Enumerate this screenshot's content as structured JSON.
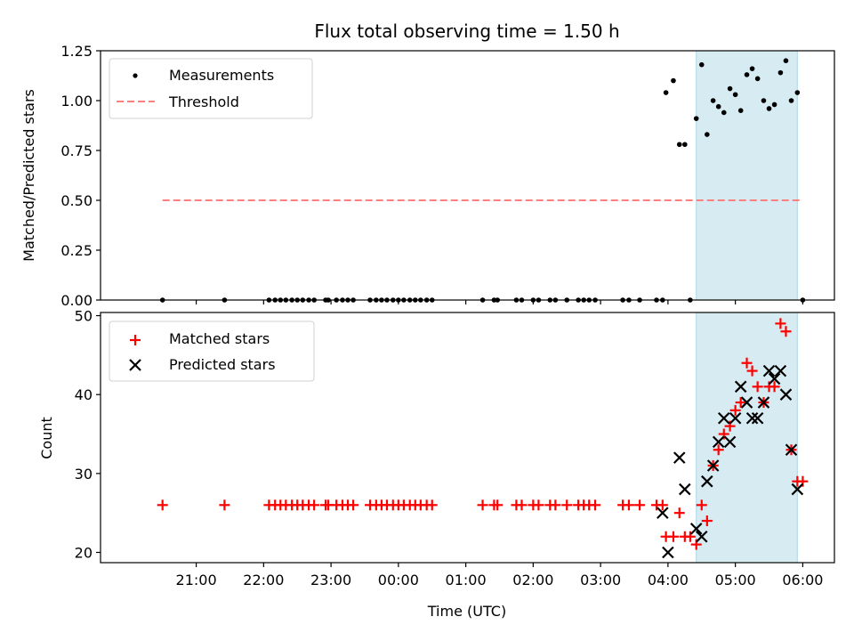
{
  "chart_data": [
    {
      "type": "scatter",
      "id": "ratio",
      "title": "Flux total observing time = 1.50 h",
      "xlabel": "",
      "ylabel": "Matched/Predicted stars",
      "ylim": [
        0.0,
        1.25
      ],
      "xlim_hours": [
        19.58,
        30.47
      ],
      "yticks": [
        0.0,
        0.25,
        0.5,
        0.75,
        1.0,
        1.25
      ],
      "ytick_labels": [
        "0.00",
        "0.25",
        "0.50",
        "0.75",
        "1.00",
        "1.25"
      ],
      "legend": {
        "placement": "top-left",
        "entries": [
          "Measurements",
          "Threshold"
        ]
      },
      "highlight_span_hours": [
        28.42,
        29.92
      ],
      "highlight_color": "#add8e6",
      "threshold": {
        "name": "Threshold",
        "value": 0.5,
        "x_range_hours": [
          20.5,
          30.0
        ],
        "color": "#ff7f7f",
        "style": "dashed"
      },
      "series": [
        {
          "name": "Measurements",
          "marker": "dot",
          "color": "#000000",
          "x": [
            20.5,
            21.42,
            22.08,
            22.17,
            22.25,
            22.33,
            22.42,
            22.5,
            22.58,
            22.67,
            22.75,
            22.92,
            22.96,
            23.08,
            23.17,
            23.25,
            23.33,
            23.58,
            23.67,
            23.75,
            23.83,
            23.92,
            24.0,
            24.08,
            24.17,
            24.25,
            24.33,
            24.42,
            24.5,
            25.25,
            25.42,
            25.47,
            25.75,
            25.83,
            26.0,
            26.08,
            26.25,
            26.33,
            26.5,
            26.67,
            26.75,
            26.83,
            26.92,
            27.33,
            27.42,
            27.58,
            27.83,
            27.92,
            27.97,
            28.08,
            28.17,
            28.25,
            28.33,
            28.42,
            28.5,
            28.58,
            28.67,
            28.75,
            28.83,
            28.92,
            29.0,
            29.08,
            29.17,
            29.25,
            29.33,
            29.42,
            29.5,
            29.58,
            29.67,
            29.75,
            29.83,
            29.92,
            30.0
          ],
          "y": [
            0,
            0,
            0,
            0,
            0,
            0,
            0,
            0,
            0,
            0,
            0,
            0,
            0,
            0,
            0,
            0,
            0,
            0,
            0,
            0,
            0,
            0,
            0,
            0,
            0,
            0,
            0,
            0,
            0,
            0,
            0,
            0,
            0,
            0,
            0,
            0,
            0,
            0,
            0,
            0,
            0,
            0,
            0,
            0,
            0,
            0,
            0,
            0,
            1.04,
            1.1,
            0.78,
            0.78,
            0,
            0.91,
            1.18,
            0.83,
            1.0,
            0.97,
            0.94,
            1.06,
            1.03,
            0.95,
            1.13,
            1.16,
            1.11,
            1.0,
            0.96,
            0.98,
            1.14,
            1.2,
            1.0,
            1.04,
            0
          ]
        }
      ]
    },
    {
      "type": "scatter",
      "id": "counts",
      "title": "",
      "xlabel": "Time (UTC)",
      "ylabel": "Count",
      "ylim": [
        18.7,
        50.4
      ],
      "xlim_hours": [
        19.58,
        30.47
      ],
      "yticks": [
        20,
        30,
        40,
        50
      ],
      "ytick_labels": [
        "20",
        "30",
        "40",
        "50"
      ],
      "xticks_hours": [
        21,
        22,
        23,
        24,
        25,
        26,
        27,
        28,
        29,
        30
      ],
      "xtick_labels": [
        "21:00",
        "22:00",
        "23:00",
        "00:00",
        "01:00",
        "02:00",
        "03:00",
        "04:00",
        "05:00",
        "06:00"
      ],
      "legend": {
        "placement": "top-left",
        "entries": [
          "Matched stars",
          "Predicted stars"
        ]
      },
      "highlight_span_hours": [
        28.42,
        29.92
      ],
      "highlight_color": "#add8e6",
      "series": [
        {
          "name": "Matched stars",
          "marker": "plus",
          "color": "#ff0000",
          "x": [
            20.5,
            21.42,
            22.08,
            22.17,
            22.25,
            22.33,
            22.42,
            22.5,
            22.58,
            22.67,
            22.75,
            22.92,
            22.96,
            23.08,
            23.17,
            23.25,
            23.33,
            23.58,
            23.67,
            23.75,
            23.83,
            23.92,
            24.0,
            24.08,
            24.17,
            24.25,
            24.33,
            24.42,
            24.5,
            25.25,
            25.42,
            25.47,
            25.75,
            25.83,
            26.0,
            26.08,
            26.25,
            26.33,
            26.5,
            26.67,
            26.75,
            26.83,
            26.92,
            27.33,
            27.42,
            27.58,
            27.83,
            27.92,
            27.97,
            28.08,
            28.17,
            28.25,
            28.33,
            28.42,
            28.5,
            28.58,
            28.67,
            28.75,
            28.83,
            28.92,
            29.0,
            29.08,
            29.17,
            29.25,
            29.33,
            29.42,
            29.5,
            29.58,
            29.67,
            29.75,
            29.83,
            29.92,
            30.0
          ],
          "y": [
            26,
            26,
            26,
            26,
            26,
            26,
            26,
            26,
            26,
            26,
            26,
            26,
            26,
            26,
            26,
            26,
            26,
            26,
            26,
            26,
            26,
            26,
            26,
            26,
            26,
            26,
            26,
            26,
            26,
            26,
            26,
            26,
            26,
            26,
            26,
            26,
            26,
            26,
            26,
            26,
            26,
            26,
            26,
            26,
            26,
            26,
            26,
            26,
            22,
            22,
            25,
            22,
            22,
            21,
            26,
            24,
            31,
            33,
            35,
            36,
            38,
            39,
            44,
            43,
            41,
            39,
            41,
            41,
            49,
            48,
            33,
            29,
            29
          ]
        },
        {
          "name": "Predicted stars",
          "marker": "x",
          "color": "#000000",
          "x": [
            27.92,
            28.0,
            28.17,
            28.25,
            28.42,
            28.5,
            28.58,
            28.67,
            28.75,
            28.83,
            28.92,
            29.0,
            29.08,
            29.17,
            29.25,
            29.33,
            29.42,
            29.5,
            29.58,
            29.67,
            29.75,
            29.83,
            29.92
          ],
          "y": [
            25,
            20,
            32,
            28,
            23,
            22,
            29,
            31,
            34,
            37,
            34,
            37,
            41,
            39,
            37,
            37,
            39,
            43,
            42,
            43,
            40,
            33,
            28
          ]
        }
      ]
    }
  ]
}
